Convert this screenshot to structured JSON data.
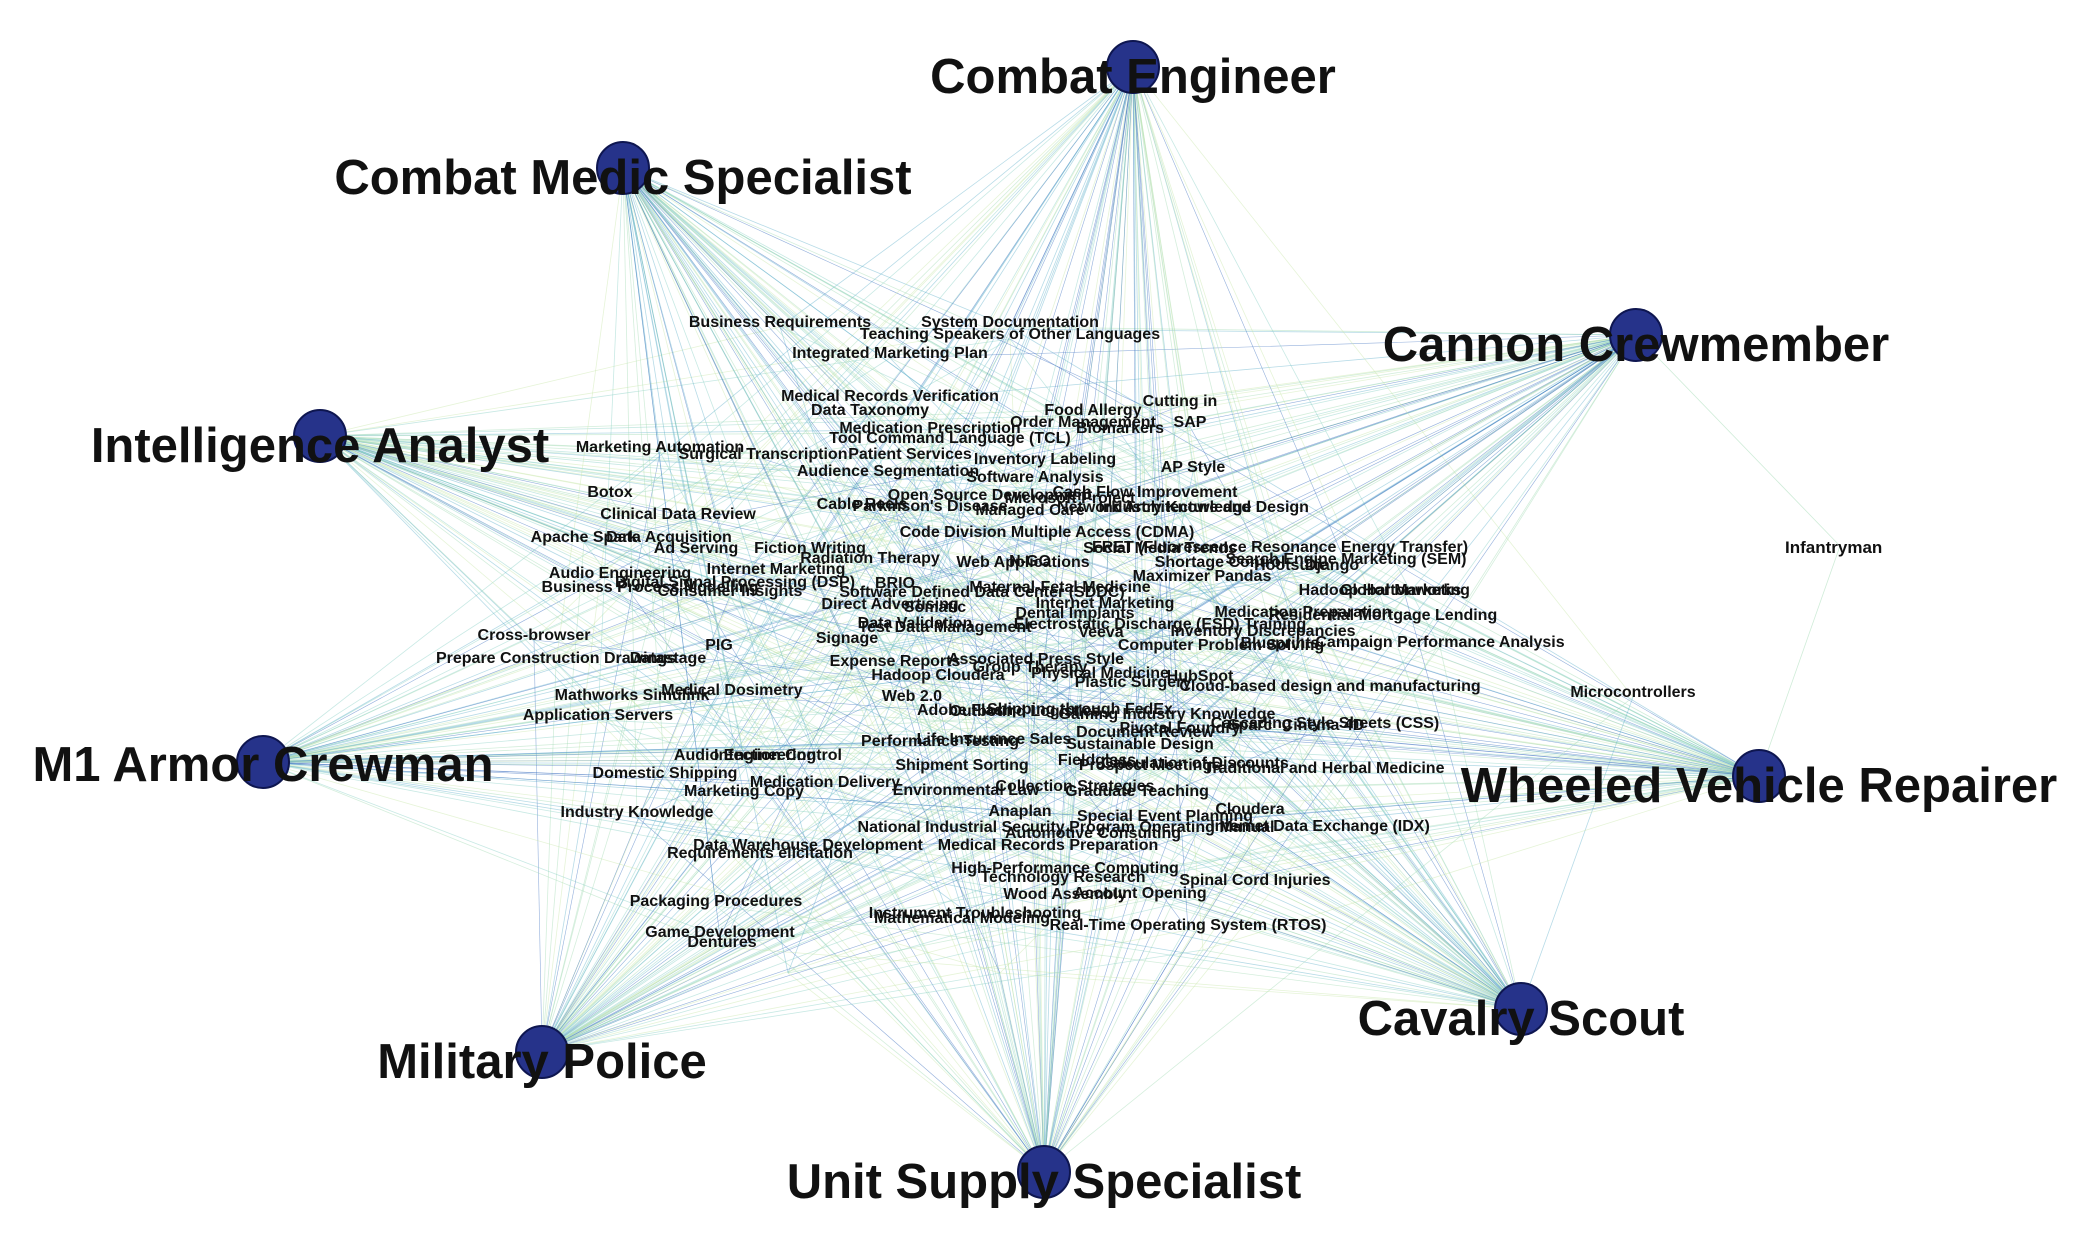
{
  "graph": {
    "hub_node_color": "#26338a",
    "hub_node_stroke": "#0e1650",
    "edge_colors": [
      "#9fd9b2",
      "#86cfc4",
      "#5fb0c9",
      "#3d6fc0",
      "#c8e6a8"
    ],
    "hubs": [
      {
        "id": "combat-engineer",
        "label": "Combat Engineer"
      },
      {
        "id": "combat-medic-specialist",
        "label": "Combat Medic Specialist"
      },
      {
        "id": "cannon-crewmember",
        "label": "Cannon Crewmember"
      },
      {
        "id": "intelligence-analyst",
        "label": "Intelligence Analyst"
      },
      {
        "id": "m1-armor-crewman",
        "label": "M1 Armor Crewman"
      },
      {
        "id": "wheeled-vehicle-repairer",
        "label": "Wheeled Vehicle Repairer"
      },
      {
        "id": "cavalry-scout",
        "label": "Cavalry Scout"
      },
      {
        "id": "military-police",
        "label": "Military Police"
      },
      {
        "id": "unit-supply-specialist",
        "label": "Unit Supply Specialist"
      }
    ],
    "outlier": {
      "id": "infantryman",
      "label": "Infantryman"
    },
    "skills": [
      "Business Requirements",
      "System Documentation",
      "Teaching Speakers of Other Languages",
      "Integrated Marketing Plan",
      "Medical Records Verification",
      "Data Taxonomy",
      "Food Allergy",
      "Cutting in",
      "Order Management",
      "SAP",
      "Medication Prescription",
      "Biomarkers",
      "Tool Command Language (TCL)",
      "Marketing Automation",
      "Surgical Transcription",
      "Patient Services",
      "Audience Segmentation",
      "Inventory Labeling",
      "AP Style",
      "Software Analysis",
      "Botox",
      "Open Source Development",
      "Cash Flow Improvement",
      "Clinical Data Review",
      "Cable Reels",
      "Parkinson's Disease",
      "Managed Care",
      "Industry Knowledge",
      "Network Architecture and Design",
      "Microsoft Project",
      "Apache Spark",
      "Data Acquisition",
      "Code Division Multiple Access (CDMA)",
      "FRET (Fluorescence Resonance Energy Transfer)",
      "Ad Serving",
      "Fiction Writing",
      "Social Media Trends",
      "Hootsuite",
      "Radiation Therapy",
      "Web Applications",
      "Shortage Control",
      "Audio Engineering",
      "Internet Marketing",
      "N-GO",
      "Search Engine Marketing (SEM)",
      "Django",
      "Business Process Modelling",
      "BRIO",
      "Maximizer Pandas",
      "Maternal-Fetal Medicine",
      "Global Marketing",
      "Hadoop Hortonworks",
      "Digital Signal Processing (DSP)",
      "Direct Advertising",
      "Software Defined Data Center (SDDC)",
      "Internet Marketing",
      "Consumer Insights",
      "Data Validation",
      "Somatic",
      "Dental Implants",
      "Medication Preparation",
      "Cross-browser",
      "Veeva",
      "Electrostatic Discharge (ESD) Training",
      "Inventory Discrepancies",
      "Residential Mortgage Lending",
      "PIG",
      "Signage",
      "Test Data Management",
      "Computer Problem Solving",
      "Blueprints",
      "Prepare Construction Drawings",
      "Datastage",
      "Expense Reports",
      "Associated Press Style",
      "Hadoop Cloudera",
      "Physical Medicine",
      "Group Therapy",
      "Plastic Surgery",
      "HubSpot",
      "Campaign Performance Analysis",
      "Microcontrollers",
      "Mathworks Simulink",
      "Medical Dosimetry",
      "Web 2.0",
      "Adobe Flash",
      "Outbound Logistics",
      "Shipping through FedEx",
      "Cloud-based design and manufacturing",
      "Cinema 4D",
      "Application Servers",
      "Performance Testing",
      "Life Insurance Sales",
      "Document Review",
      "Pivotal Foundry",
      "Sparc",
      "Cascading Style Sheets (CSS)",
      "Audio Engineering",
      "Infection Control",
      "Sustainable Design",
      "Gaming Industry Knowledge",
      "Calculation of Discounts",
      "Shipment Sorting",
      "Fieldglass",
      "Traditional and Herbal Medicine",
      "Domestic Shipping",
      "Medication Delivery",
      "Collection Strategies",
      "Prospect Meetings",
      "Marketing Copy",
      "Graduate Teaching",
      "Environmental Law",
      "Industry Knowledge",
      "Anaplan",
      "Special Event Planning",
      "Cloudera",
      "National Industrial Security Program Operating Manual",
      "Automotive Consulting",
      "Internet Data Exchange (IDX)",
      "Data Warehouse Development",
      "Medical Records Preparation",
      "Requirements elicitation",
      "High-Performance Computing",
      "Technology Research",
      "Spinal Cord Injuries",
      "Wood Assembly",
      "Account Opening",
      "Packaging Procedures",
      "Instrument Troubleshooting",
      "Mathematical Modeling",
      "Real-Time Operating System (RTOS)",
      "Game Development",
      "Dentures"
    ]
  }
}
